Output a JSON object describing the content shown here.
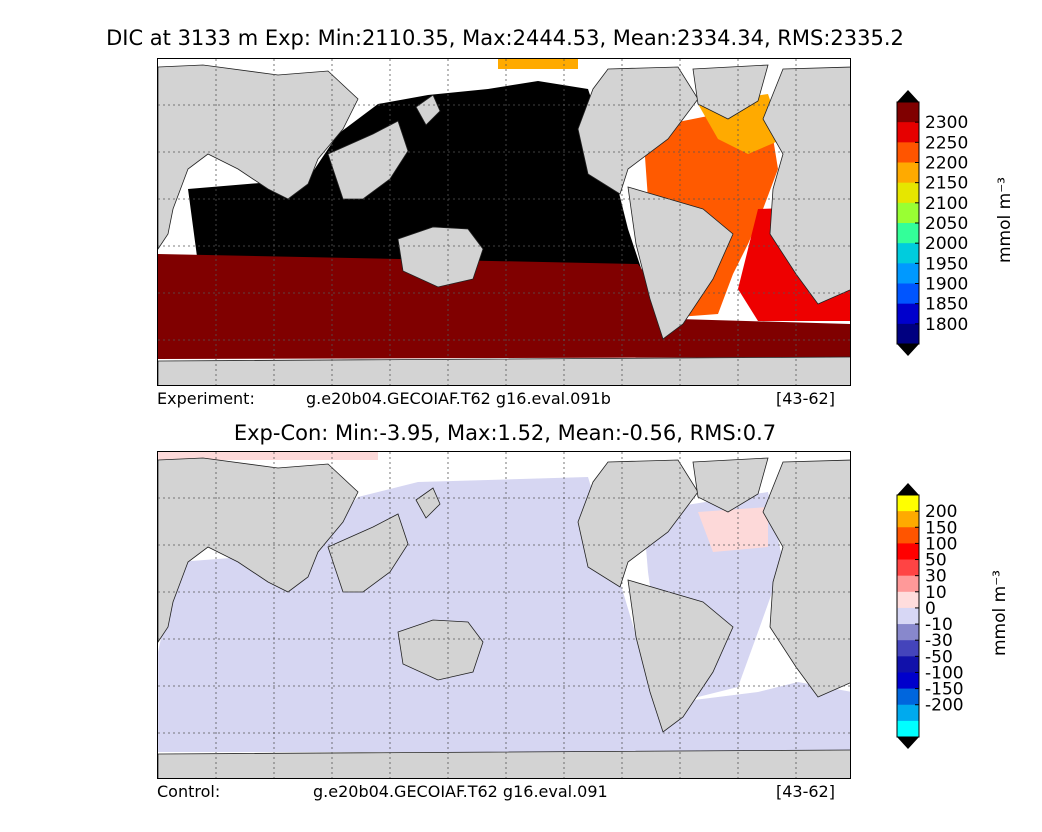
{
  "top": {
    "title": "DIC at 3133 m Exp: Min:2110.35, Max:2444.53, Mean:2334.34, RMS:2335.2",
    "caption_left": "Experiment:",
    "caption_case": "g.e20b04.GECOIAF.T62 g16.eval.091b",
    "caption_years": "[43-62]",
    "colorbar": {
      "unit": "mmol m⁻³",
      "labels": [
        "2300",
        "2250",
        "2200",
        "2150",
        "2100",
        "2050",
        "2000",
        "1950",
        "1900",
        "1850",
        "1800"
      ],
      "colors": [
        "#800000",
        "#e60000",
        "#ff5500",
        "#ffaa00",
        "#e6e600",
        "#99ff33",
        "#33ff99",
        "#00ccdd",
        "#0099ff",
        "#0055ff",
        "#0000cc",
        "#000080"
      ]
    },
    "map_colors": {
      "ocean_pacific_indian": "#000000",
      "southern": "#800000",
      "atlantic": "#ff5a00",
      "south_atlantic_east": "#ee0000",
      "north_atlantic": "#ffaa00",
      "land": "#d3d3d3"
    }
  },
  "bottom": {
    "title": "Exp-Con: Min:-3.95, Max:1.52, Mean:-0.56, RMS:0.7",
    "caption_left": "Control:",
    "caption_case": "g.e20b04.GECOIAF.T62 g16.eval.091",
    "caption_years": "[43-62]",
    "colorbar": {
      "unit": "mmol m⁻³",
      "labels": [
        "200",
        "150",
        "100",
        "50",
        "30",
        "10",
        "0",
        "-10",
        "-30",
        "-50",
        "-100",
        "-150",
        "-200"
      ],
      "colors": [
        "#ffff00",
        "#ffaa00",
        "#ff5500",
        "#ff0000",
        "#ff4444",
        "#ff9999",
        "#ffdddd",
        "#d7d7f5",
        "#8888cc",
        "#4444bb",
        "#1111aa",
        "#0000cc",
        "#0066dd",
        "#00aaee",
        "#00ffff"
      ]
    },
    "map_colors": {
      "ocean": "#d6d6f2",
      "positive": "#fdd9d9",
      "land": "#d3d3d3"
    }
  },
  "chart_data": [
    {
      "type": "heatmap",
      "title": "DIC at 3133 m Exp: Min:2110.35, Max:2444.53, Mean:2334.34, RMS:2335.2",
      "stats": {
        "min": 2110.35,
        "max": 2444.53,
        "mean": 2334.34,
        "rms": 2335.2
      },
      "depth": "3133 m",
      "colorbar_ticks": [
        1800,
        1850,
        1900,
        1950,
        2000,
        2050,
        2100,
        2150,
        2200,
        2250,
        2300
      ],
      "colorbar_extend": "both",
      "unit": "mmol m⁻³"
    },
    {
      "type": "heatmap",
      "title": "Exp-Con: Min:-3.95, Max:1.52, Mean:-0.56, RMS:0.7",
      "stats": {
        "min": -3.95,
        "max": 1.52,
        "mean": -0.56,
        "rms": 0.7
      },
      "colorbar_ticks": [
        -200,
        -150,
        -100,
        -50,
        -30,
        -10,
        0,
        10,
        30,
        50,
        100,
        150,
        200
      ],
      "colorbar_extend": "both",
      "unit": "mmol m⁻³"
    }
  ]
}
